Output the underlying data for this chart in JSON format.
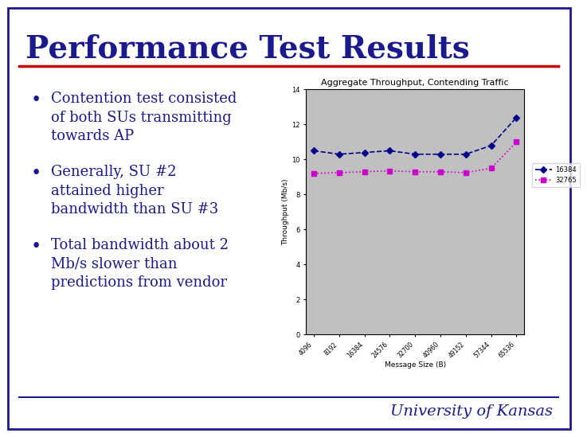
{
  "title": "Performance Test Results",
  "title_color": "#1a1a8c",
  "title_fontsize": 28,
  "bg_color": "#ffffff",
  "border_color": "#1a1a8c",
  "separator_color": "#cc0000",
  "bullet_points": [
    "Contention test consisted\nof both SUs transmitting\ntowards AP",
    "Generally, SU #2\nattained higher\nbandwidth than SU #3",
    "Total bandwidth about 2\nMb/s slower than\npredictions from vendor"
  ],
  "bullet_color": "#1a1a8c",
  "bullet_fontsize": 13,
  "chart_title": "Aggregate Throughput, Contending Traffic",
  "chart_title_fontsize": 8,
  "xlabel": "Message Size (B)",
  "ylabel": "Throughput (Mb/s)",
  "x_labels": [
    "4096",
    "8192",
    "16384",
    "24576",
    "32700",
    "40960",
    "49152",
    "57344",
    "65536"
  ],
  "x_values": [
    4096,
    8192,
    16384,
    24576,
    32700,
    40960,
    49152,
    57344,
    65536
  ],
  "series1_label": "16384",
  "series1_color": "#00008b",
  "series1_y": [
    10.5,
    10.3,
    10.4,
    10.5,
    10.3,
    10.3,
    10.3,
    10.8,
    12.4
  ],
  "series2_label": "32765",
  "series2_color": "#cc00cc",
  "series2_y": [
    9.2,
    9.25,
    9.3,
    9.35,
    9.3,
    9.3,
    9.25,
    9.5,
    11.0
  ],
  "ylim": [
    0,
    14
  ],
  "yticks": [
    0,
    2,
    4,
    6,
    8,
    10,
    12,
    14
  ],
  "chart_bg": "#c0c0c0",
  "footer_color": "#1a1a8c",
  "univ_text": "University of Kansas",
  "univ_fontsize": 14
}
